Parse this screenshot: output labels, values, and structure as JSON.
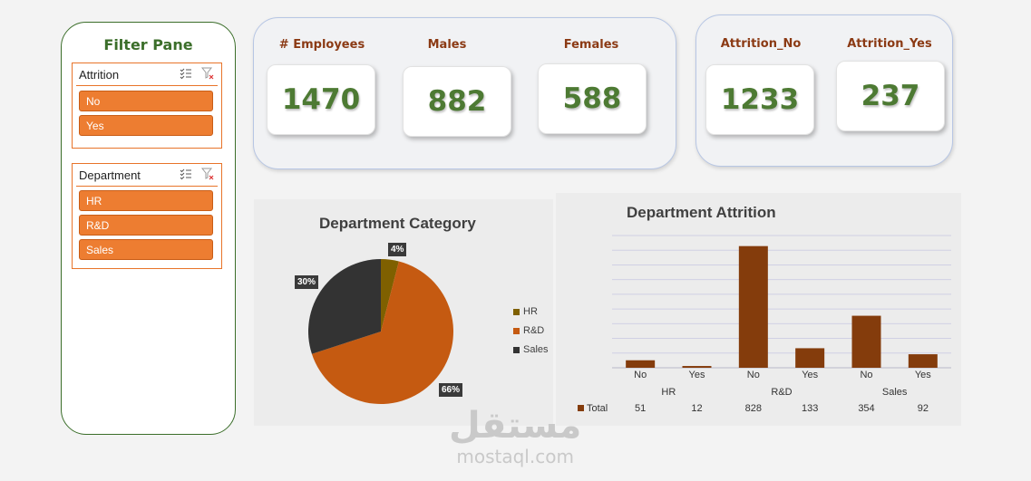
{
  "filter_pane": {
    "title": "Filter Pane",
    "attrition": {
      "label": "Attrition",
      "items": [
        "No",
        "Yes"
      ]
    },
    "department": {
      "label": "Department",
      "items": [
        "HR",
        "R&D",
        "Sales"
      ]
    }
  },
  "kpis": {
    "employees": {
      "label": "# Employees",
      "value": "1470"
    },
    "males": {
      "label": "Males",
      "value": "882"
    },
    "females": {
      "label": "Females",
      "value": "588"
    },
    "attrition_no": {
      "label": "Attrition_No",
      "value": "1233"
    },
    "attrition_yes": {
      "label": "Attrition_Yes",
      "value": "237"
    }
  },
  "colors": {
    "accent_orange": "#ed7d31",
    "kpi_green": "#4d7a33",
    "label_brown": "#8b3a14",
    "bar_brown": "#843c0c",
    "hr": "#7f6000",
    "rd": "#c55a11",
    "sales": "#333333"
  },
  "watermark": {
    "arabic": "مستقل",
    "latin": "mostaql.com"
  },
  "chart_data": [
    {
      "type": "pie",
      "title": "Department Category",
      "categories": [
        "HR",
        "R&D",
        "Sales"
      ],
      "values": [
        4,
        66,
        30
      ],
      "labels": [
        "4%",
        "66%",
        "30%"
      ],
      "legend": "right"
    },
    {
      "type": "bar",
      "title": "Department Attrition",
      "groups": [
        "HR",
        "R&D",
        "Sales"
      ],
      "categories": [
        "No",
        "Yes",
        "No",
        "Yes",
        "No",
        "Yes"
      ],
      "series": [
        {
          "name": "Total",
          "values": [
            51,
            12,
            828,
            133,
            354,
            92
          ]
        }
      ],
      "ylim": [
        0,
        900
      ],
      "grid": true,
      "data_table": true
    }
  ]
}
